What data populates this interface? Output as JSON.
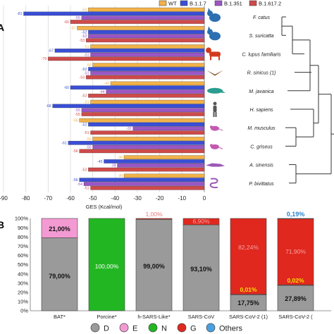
{
  "panel_letters": [
    "A",
    "B"
  ],
  "colors": {
    "WT": "#f2b24a",
    "B.1.1.7": "#3a4fd6",
    "B.1.351": "#9b56c6",
    "B.1.617.2": "#cf4a4a",
    "silhouette_blue": "#2d6fb0",
    "silhouette_red": "#d23a1e",
    "silhouette_brown": "#8a5a2c",
    "silhouette_teal": "#2a9d8f",
    "silhouette_gray": "#555555",
    "silhouette_pink": "#c25ab0",
    "silhouette_purple": "#9b59b6",
    "D": "#9a9a9a",
    "E": "#f39ad3",
    "N": "#22b722",
    "G": "#e0281e",
    "Others": "#4aa0e0"
  },
  "chart_data": [
    {
      "type": "bar",
      "orientation": "horizontal",
      "categories": [
        "F. catus",
        "S. suricatta",
        "C. lupus familiaris",
        "R. sinicus (1)",
        "M. javanica",
        "H. sapiens",
        "M. musculus",
        "C. griseus",
        "A. sinensis",
        "P. bivittatus"
      ],
      "series": [
        {
          "name": "WT",
          "values": [
            -52,
            -57,
            -51,
            -50,
            -42,
            -51,
            -56,
            -50,
            -36,
            -36
          ]
        },
        {
          "name": "B.1.1.7",
          "values": [
            -81,
            -52,
            -67,
            -52,
            -60,
            -68,
            -52,
            -61,
            -45,
            -56
          ]
        },
        {
          "name": "B.1.351",
          "values": [
            -55,
            -52,
            -51,
            -51,
            -44,
            -55,
            -32,
            -50,
            -39,
            -54
          ]
        },
        {
          "name": "B.1.617.2",
          "values": [
            -60,
            -53,
            -70,
            -53,
            -52,
            -55,
            -51,
            -56,
            -52,
            -51
          ]
        }
      ],
      "xlabel": "GES (Kcal/mol)",
      "xlim": [
        -90,
        0
      ],
      "xticks": [
        "-90",
        "-80",
        "-70",
        "-60",
        "-50",
        "-40",
        "-30",
        "-20",
        "-10",
        "0"
      ],
      "legend_position": "top"
    },
    {
      "type": "bar",
      "stacked": true,
      "categories": [
        "BAT*",
        "Porcine*",
        "h-SARS-Like*",
        "SARS-CoV",
        "SARS-CoV-2 (1)",
        "SARS-CoV-2 (2)"
      ],
      "category_labels": [
        "BAT*",
        "Porcine*",
        "h-SARS-Like*",
        "SARS-CoV",
        "SARS-CoV-2 (1)",
        "SARS-CoV-2 ("
      ],
      "series": [
        {
          "name": "D",
          "values": [
            79.0,
            0,
            99.0,
            93.1,
            17.75,
            27.89
          ]
        },
        {
          "name": "E",
          "values": [
            21.0,
            0,
            0,
            0,
            0,
            0
          ]
        },
        {
          "name": "N",
          "values": [
            0,
            100.0,
            0,
            0,
            0.01,
            0.02
          ]
        },
        {
          "name": "G",
          "values": [
            0,
            0,
            1.0,
            6.9,
            82.24,
            71.9
          ]
        },
        {
          "name": "Others",
          "values": [
            0,
            0,
            0,
            0,
            0,
            0.19
          ]
        }
      ],
      "labels": [
        {
          "text": "79,00%",
          "category": 0,
          "series": "D"
        },
        {
          "text": "21,00%",
          "category": 0,
          "series": "E"
        },
        {
          "text": "100,00%",
          "category": 1,
          "series": "N"
        },
        {
          "text": "99,00%",
          "category": 2,
          "series": "D"
        },
        {
          "text": "1,00%",
          "category": 2,
          "series": "G"
        },
        {
          "text": "93,10%",
          "category": 3,
          "series": "D"
        },
        {
          "text": "6,90%",
          "category": 3,
          "series": "G"
        },
        {
          "text": "17,75%",
          "category": 4,
          "series": "D"
        },
        {
          "text": "0,01%",
          "category": 4,
          "series": "N"
        },
        {
          "text": "82,24%",
          "category": 4,
          "series": "G"
        },
        {
          "text": "27,89%",
          "category": 5,
          "series": "D"
        },
        {
          "text": "0,02%",
          "category": 5,
          "series": "N"
        },
        {
          "text": "71,90%",
          "category": 5,
          "series": "G"
        },
        {
          "text": "0,19%",
          "category": 5,
          "series": "Others"
        }
      ],
      "ylim": [
        0,
        100
      ],
      "yticks": [
        "0%",
        "10%",
        "20%",
        "30%",
        "40%",
        "50%",
        "60%",
        "70%",
        "80%",
        "90%",
        "100%"
      ],
      "legend_position": "bottom"
    }
  ]
}
